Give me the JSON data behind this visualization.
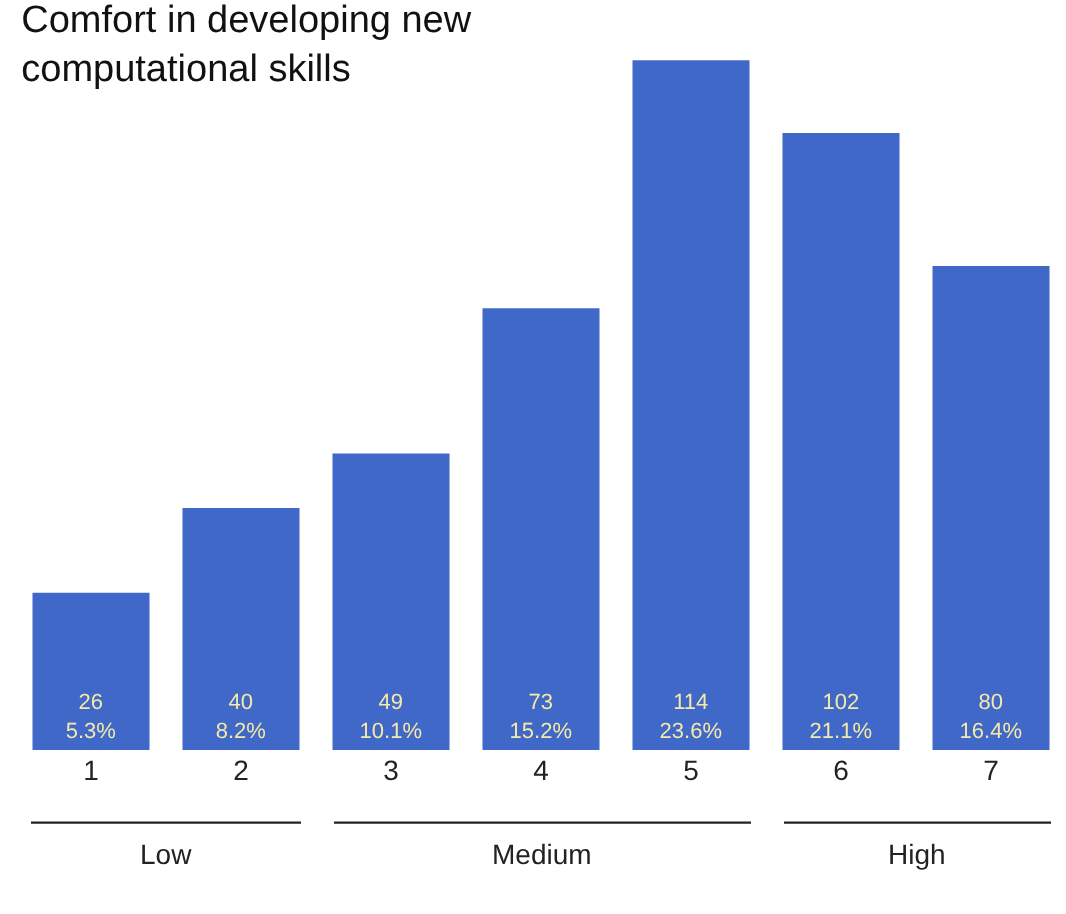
{
  "chart_data": {
    "type": "bar",
    "title": "Comfort in developing new\ncomputational skills",
    "categories": [
      "1",
      "2",
      "3",
      "4",
      "5",
      "6",
      "7"
    ],
    "values": [
      26,
      40,
      49,
      73,
      114,
      102,
      80
    ],
    "value_labels": [
      "26\n5.3%",
      "40\n8.2%",
      "49\n10.1%",
      "73\n15.2%",
      "114\n23.6%",
      "102\n21.1%",
      "80\n16.4%"
    ],
    "color": "#4068c8",
    "annotations": [
      "Low",
      "Medium",
      "High"
    ],
    "grid": false,
    "legend": false
  }
}
